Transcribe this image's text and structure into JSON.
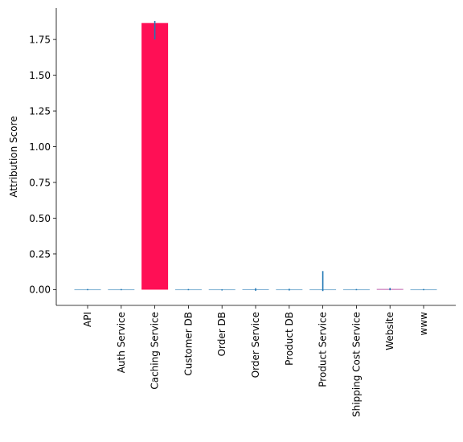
{
  "chart_data": {
    "type": "bar",
    "title": "",
    "xlabel": "",
    "ylabel": "Attribution Score",
    "ylim": [
      -0.11,
      1.97
    ],
    "yticks": [
      "0.00",
      "0.25",
      "0.50",
      "0.75",
      "1.00",
      "1.25",
      "1.50",
      "1.75"
    ],
    "grid": false,
    "legend": "none",
    "categories": [
      "API",
      "Auth Service",
      "Caching Service",
      "Customer DB",
      "Order DB",
      "Order Service",
      "Product DB",
      "Product Service",
      "Shipping Cost Service",
      "Website",
      "www"
    ],
    "values": [
      0.0,
      0.0,
      1.865,
      0.0,
      -0.002,
      0.002,
      0.0,
      0.0,
      0.0,
      0.004,
      0.0
    ],
    "error_low": [
      -0.004,
      -0.004,
      1.75,
      -0.004,
      -0.006,
      -0.008,
      -0.006,
      -0.01,
      -0.004,
      -0.004,
      -0.004
    ],
    "error_high": [
      0.004,
      0.004,
      1.88,
      0.004,
      0.002,
      0.01,
      0.006,
      0.13,
      0.004,
      0.012,
      0.004
    ],
    "bar_colors": [
      "#1f77b4",
      "#1f77b4",
      "#ff0f55",
      "#1f77b4",
      "#1f77b4",
      "#1f77b4",
      "#1f77b4",
      "#1f77b4",
      "#1f77b4",
      "#a21a8a",
      "#1f77b4"
    ],
    "error_color": "#1f77b4"
  }
}
